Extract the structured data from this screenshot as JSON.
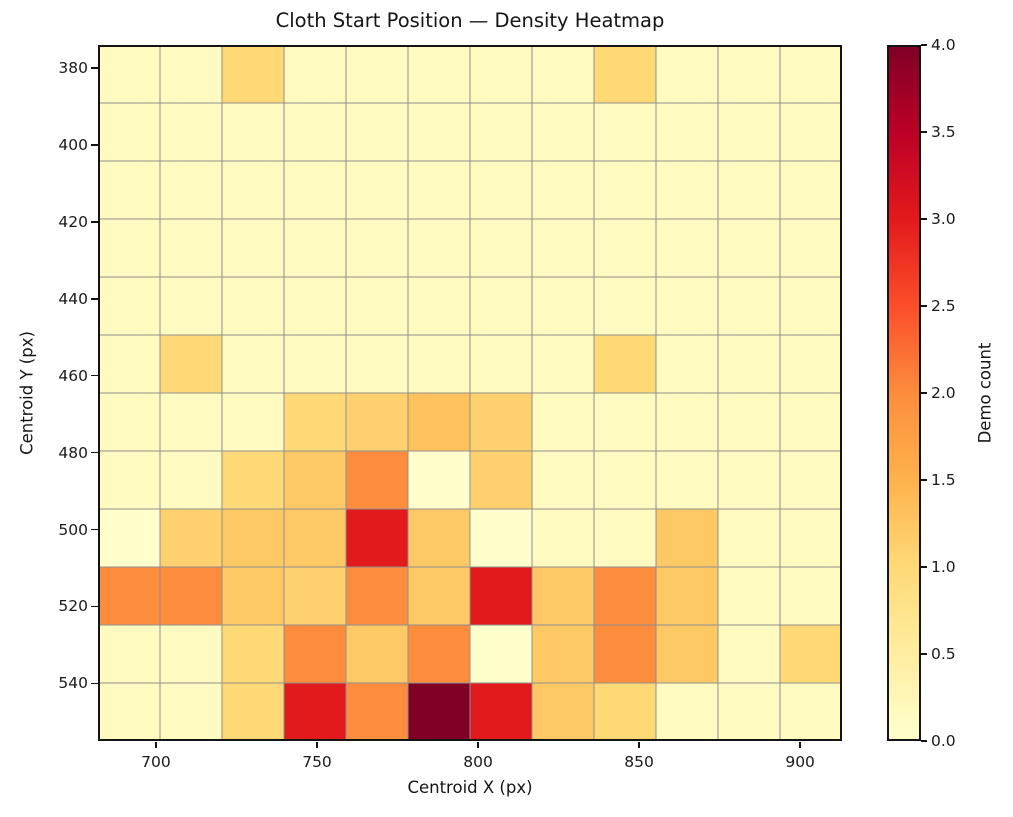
{
  "chart_data": {
    "type": "heatmap",
    "title": "Cloth Start Position — Density Heatmap",
    "xlabel": "Centroid X (px)",
    "ylabel": "Centroid Y (px)",
    "colorbar_label": "Demo count",
    "colormap": "YlOrRd",
    "colormap_stops": [
      "#ffffcc",
      "#ffeda0",
      "#fed976",
      "#feb24c",
      "#fd8d3c",
      "#fc4e2a",
      "#e31a1c",
      "#bd0026",
      "#800026"
    ],
    "vmin": 0,
    "vmax": 4,
    "grid": true,
    "grid_cols": 12,
    "grid_rows": 12,
    "x_range": [
      682,
      913
    ],
    "y_range": [
      374,
      555
    ],
    "y_axis_inverted": true,
    "x_tick_values": [
      700,
      750,
      800,
      850,
      900
    ],
    "x_tick_labels": [
      "700",
      "750",
      "800",
      "850",
      "900"
    ],
    "y_tick_values": [
      380,
      400,
      420,
      440,
      460,
      480,
      500,
      520,
      540
    ],
    "y_tick_labels": [
      "380",
      "400",
      "420",
      "440",
      "460",
      "480",
      "500",
      "520",
      "540"
    ],
    "colorbar_tick_values": [
      0,
      0.5,
      1,
      1.5,
      2,
      2.5,
      3,
      3.5,
      4
    ],
    "colorbar_tick_labels": [
      "0.0",
      "0.5",
      "1.0",
      "1.5",
      "2.0",
      "2.5",
      "3.0",
      "3.5",
      "4.0"
    ],
    "values": [
      [
        0.15,
        0.15,
        1.0,
        0.15,
        0.15,
        0.15,
        0.15,
        0.15,
        1.0,
        0.15,
        0.15,
        0.15
      ],
      [
        0.15,
        0.15,
        0.15,
        0.15,
        0.15,
        0.15,
        0.15,
        0.15,
        0.15,
        0.15,
        0.15,
        0.15
      ],
      [
        0.15,
        0.15,
        0.15,
        0.15,
        0.15,
        0.15,
        0.15,
        0.15,
        0.15,
        0.15,
        0.15,
        0.15
      ],
      [
        0.15,
        0.15,
        0.15,
        0.15,
        0.15,
        0.15,
        0.15,
        0.15,
        0.15,
        0.15,
        0.15,
        0.15
      ],
      [
        0.15,
        0.15,
        0.15,
        0.15,
        0.15,
        0.15,
        0.15,
        0.15,
        0.15,
        0.15,
        0.15,
        0.15
      ],
      [
        0.15,
        1.0,
        0.15,
        0.15,
        0.15,
        0.15,
        0.15,
        0.15,
        1.0,
        0.15,
        0.15,
        0.15
      ],
      [
        0.15,
        0.15,
        0.15,
        1.0,
        1.1,
        1.3,
        1.1,
        0.15,
        0.15,
        0.15,
        0.15,
        0.15
      ],
      [
        0.15,
        0.15,
        1.0,
        1.2,
        2.0,
        0.0,
        1.1,
        0.15,
        0.15,
        0.15,
        0.15,
        0.15
      ],
      [
        0.0,
        1.1,
        1.2,
        1.2,
        3.0,
        1.2,
        0.0,
        0.15,
        0.15,
        1.2,
        0.15,
        0.15
      ],
      [
        2.0,
        2.0,
        1.2,
        1.1,
        2.0,
        1.2,
        3.0,
        1.2,
        2.0,
        1.2,
        0.15,
        0.15
      ],
      [
        0.15,
        0.15,
        1.0,
        2.0,
        1.2,
        2.0,
        0.0,
        1.2,
        2.0,
        1.2,
        0.15,
        1.0
      ],
      [
        0.15,
        0.15,
        1.0,
        3.0,
        2.0,
        4.0,
        3.0,
        1.2,
        1.0,
        0.15,
        0.15,
        0.15
      ]
    ]
  },
  "style": {
    "spine_color": "#141414",
    "gridline_color": "#8f8f8f",
    "text_color": "#1a1a1a",
    "background": "#ffffff"
  }
}
